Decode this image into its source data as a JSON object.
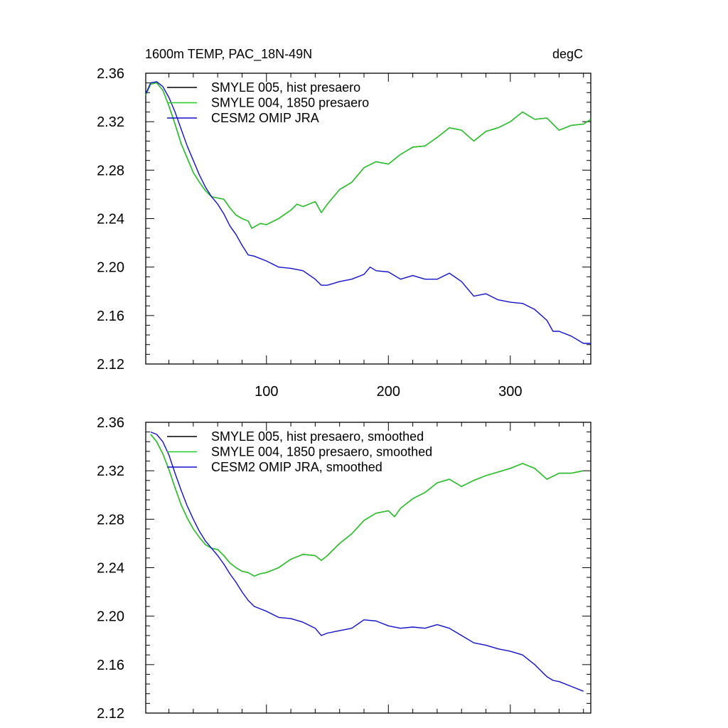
{
  "chart_data": [
    {
      "type": "line",
      "title_left": "1600m TEMP, PAC_18N-49N",
      "title_right": "degC",
      "xlim": [
        1,
        366
      ],
      "ylim": [
        2.12,
        2.36
      ],
      "xticks": [
        100,
        200,
        300
      ],
      "yticks": [
        "2.36",
        "2.32",
        "2.28",
        "2.24",
        "2.20",
        "2.16",
        "2.12"
      ],
      "legend_position": "top-left",
      "grid": false,
      "series": [
        {
          "name": "SMYLE 005, hist presaero",
          "color": "#000000",
          "x": [
            1,
            5,
            10,
            15,
            20,
            25,
            30,
            35,
            40,
            45,
            50,
            55,
            60,
            65,
            70,
            75,
            80,
            85,
            88,
            95,
            100,
            110,
            120,
            125,
            130,
            140,
            145,
            150,
            160,
            170,
            180,
            190,
            200,
            210,
            220,
            230,
            240,
            250,
            260,
            270,
            280,
            290,
            300,
            310,
            320,
            330,
            340,
            350,
            360,
            366
          ],
          "y": [
            2.342,
            2.351,
            2.352,
            2.346,
            2.333,
            2.318,
            2.302,
            2.29,
            2.278,
            2.27,
            2.263,
            2.258,
            2.257,
            2.256,
            2.249,
            2.243,
            2.24,
            2.238,
            2.232,
            2.236,
            2.235,
            2.24,
            2.247,
            2.252,
            2.25,
            2.254,
            2.245,
            2.252,
            2.264,
            2.27,
            2.282,
            2.287,
            2.285,
            2.293,
            2.299,
            2.3,
            2.307,
            2.315,
            2.313,
            2.304,
            2.312,
            2.315,
            2.32,
            2.328,
            2.322,
            2.323,
            2.313,
            2.317,
            2.318,
            2.322
          ]
        },
        {
          "name": "SMYLE 004, 1850 presaero",
          "color": "#22cc22",
          "x": [
            1,
            5,
            10,
            15,
            20,
            25,
            30,
            35,
            40,
            45,
            50,
            55,
            60,
            65,
            70,
            75,
            80,
            85,
            88,
            95,
            100,
            110,
            120,
            125,
            130,
            140,
            145,
            150,
            160,
            170,
            180,
            190,
            200,
            210,
            220,
            230,
            240,
            250,
            260,
            270,
            280,
            290,
            300,
            310,
            320,
            330,
            340,
            350,
            360,
            366
          ],
          "y": [
            2.342,
            2.351,
            2.352,
            2.346,
            2.333,
            2.318,
            2.302,
            2.29,
            2.278,
            2.27,
            2.263,
            2.258,
            2.257,
            2.256,
            2.249,
            2.243,
            2.24,
            2.238,
            2.232,
            2.236,
            2.235,
            2.24,
            2.247,
            2.252,
            2.25,
            2.254,
            2.245,
            2.252,
            2.264,
            2.27,
            2.282,
            2.287,
            2.285,
            2.293,
            2.299,
            2.3,
            2.307,
            2.315,
            2.313,
            2.304,
            2.312,
            2.315,
            2.32,
            2.328,
            2.322,
            2.323,
            2.313,
            2.317,
            2.318,
            2.322
          ]
        },
        {
          "name": "CESM2 OMIP JRA",
          "color": "#1010cc",
          "x": [
            1,
            5,
            10,
            15,
            20,
            25,
            30,
            35,
            40,
            45,
            50,
            55,
            60,
            65,
            70,
            75,
            80,
            85,
            90,
            100,
            110,
            120,
            130,
            140,
            145,
            150,
            160,
            170,
            180,
            185,
            190,
            200,
            210,
            220,
            230,
            240,
            250,
            260,
            270,
            280,
            290,
            300,
            310,
            320,
            330,
            335,
            340,
            350,
            360,
            366
          ],
          "y": [
            2.343,
            2.352,
            2.353,
            2.349,
            2.34,
            2.328,
            2.314,
            2.3,
            2.288,
            2.276,
            2.266,
            2.258,
            2.252,
            2.244,
            2.234,
            2.227,
            2.218,
            2.21,
            2.209,
            2.205,
            2.2,
            2.199,
            2.197,
            2.19,
            2.185,
            2.185,
            2.188,
            2.19,
            2.194,
            2.2,
            2.197,
            2.196,
            2.19,
            2.193,
            2.19,
            2.19,
            2.195,
            2.188,
            2.176,
            2.178,
            2.173,
            2.171,
            2.17,
            2.165,
            2.156,
            2.147,
            2.147,
            2.143,
            2.137,
            2.137
          ]
        }
      ]
    },
    {
      "type": "line",
      "xlim": [
        1,
        366
      ],
      "ylim": [
        2.12,
        2.36
      ],
      "yticks": [
        "2.36",
        "2.32",
        "2.28",
        "2.24",
        "2.20",
        "2.16",
        "2.12"
      ],
      "legend_position": "top-left",
      "grid": false,
      "series": [
        {
          "name": "SMYLE 005, hist presaero, smoothed",
          "color": "#000000",
          "x": [
            5,
            10,
            15,
            20,
            25,
            30,
            35,
            40,
            45,
            50,
            55,
            60,
            65,
            70,
            75,
            80,
            85,
            90,
            95,
            100,
            110,
            120,
            130,
            140,
            145,
            150,
            160,
            170,
            180,
            190,
            200,
            205,
            210,
            220,
            230,
            240,
            250,
            260,
            270,
            280,
            290,
            300,
            310,
            320,
            330,
            340,
            350,
            360
          ],
          "y": [
            2.35,
            2.344,
            2.334,
            2.321,
            2.306,
            2.292,
            2.281,
            2.272,
            2.265,
            2.259,
            2.256,
            2.255,
            2.25,
            2.244,
            2.24,
            2.237,
            2.236,
            2.233,
            2.235,
            2.236,
            2.24,
            2.247,
            2.251,
            2.25,
            2.246,
            2.25,
            2.26,
            2.268,
            2.279,
            2.285,
            2.287,
            2.282,
            2.289,
            2.297,
            2.302,
            2.31,
            2.313,
            2.307,
            2.312,
            2.316,
            2.319,
            2.322,
            2.326,
            2.322,
            2.313,
            2.318,
            2.318,
            2.32
          ]
        },
        {
          "name": "SMYLE 004, 1850 presaero, smoothed",
          "color": "#22cc22",
          "x": [
            5,
            10,
            15,
            20,
            25,
            30,
            35,
            40,
            45,
            50,
            55,
            60,
            65,
            70,
            75,
            80,
            85,
            90,
            95,
            100,
            110,
            120,
            130,
            140,
            145,
            150,
            160,
            170,
            180,
            190,
            200,
            205,
            210,
            220,
            230,
            240,
            250,
            260,
            270,
            280,
            290,
            300,
            310,
            320,
            330,
            340,
            350,
            360
          ],
          "y": [
            2.35,
            2.344,
            2.334,
            2.321,
            2.306,
            2.292,
            2.281,
            2.272,
            2.265,
            2.259,
            2.256,
            2.255,
            2.25,
            2.244,
            2.24,
            2.237,
            2.236,
            2.233,
            2.235,
            2.236,
            2.24,
            2.247,
            2.251,
            2.25,
            2.246,
            2.25,
            2.26,
            2.268,
            2.279,
            2.285,
            2.287,
            2.282,
            2.289,
            2.297,
            2.302,
            2.31,
            2.313,
            2.307,
            2.312,
            2.316,
            2.319,
            2.322,
            2.326,
            2.322,
            2.313,
            2.318,
            2.318,
            2.32
          ]
        },
        {
          "name": "CESM2 OMIP JRA, smoothed",
          "color": "#1010cc",
          "x": [
            5,
            10,
            15,
            20,
            25,
            30,
            35,
            40,
            45,
            50,
            55,
            60,
            65,
            70,
            75,
            80,
            85,
            90,
            95,
            100,
            110,
            120,
            130,
            140,
            145,
            150,
            160,
            170,
            180,
            190,
            200,
            210,
            220,
            230,
            240,
            250,
            260,
            270,
            280,
            290,
            300,
            310,
            320,
            330,
            335,
            340,
            350,
            360
          ],
          "y": [
            2.352,
            2.35,
            2.344,
            2.333,
            2.318,
            2.304,
            2.291,
            2.28,
            2.27,
            2.262,
            2.256,
            2.25,
            2.243,
            2.235,
            2.228,
            2.22,
            2.213,
            2.208,
            2.206,
            2.204,
            2.199,
            2.198,
            2.195,
            2.19,
            2.184,
            2.186,
            2.188,
            2.19,
            2.197,
            2.196,
            2.192,
            2.19,
            2.191,
            2.19,
            2.193,
            2.19,
            2.184,
            2.178,
            2.176,
            2.173,
            2.171,
            2.168,
            2.16,
            2.15,
            2.147,
            2.146,
            2.142,
            2.138
          ]
        }
      ]
    }
  ]
}
